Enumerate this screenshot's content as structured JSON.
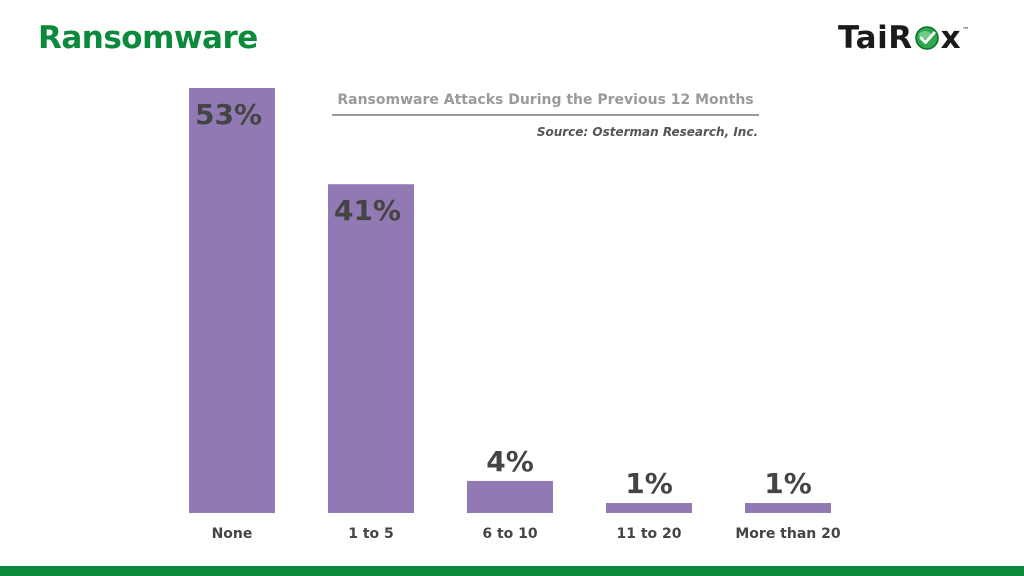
{
  "slide": {
    "title": "Ransomware",
    "logo_text_left": "TaiR",
    "logo_text_right": "x",
    "logo_trademark": "™"
  },
  "colors": {
    "title_green": "#0c8a3c",
    "bar_purple": "#917ab3",
    "label_gray": "#444444",
    "heading_gray": "#9a9a9a",
    "bottom_bar_green": "#0c8a3c"
  },
  "icons": {
    "logo_o": "green-globe-check-icon"
  },
  "chart_data": {
    "type": "bar",
    "title": "Ransomware Attacks During the Previous 12 Months",
    "subtitle": "Source: Osterman Research, Inc.",
    "xlabel": "",
    "ylabel": "",
    "categories": [
      "None",
      "1 to 5",
      "6 to 10",
      "11 to 20",
      "More than 20"
    ],
    "values": [
      53,
      41,
      4,
      1,
      1
    ],
    "data_labels": [
      "53%",
      "41%",
      "4%",
      "1%",
      "1%"
    ],
    "ylim": [
      0,
      53
    ],
    "grid": false,
    "legend": "none"
  }
}
